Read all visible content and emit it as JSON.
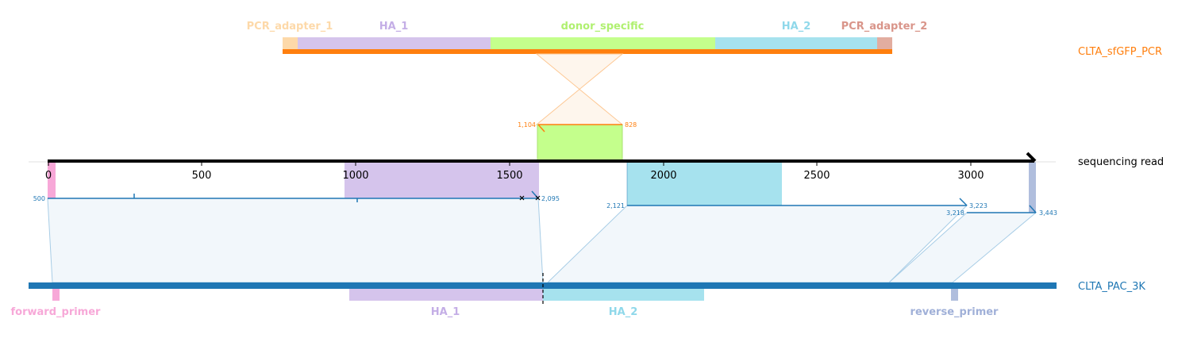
{
  "colors": {
    "pcr_track": "#ff7f0e",
    "read_track": "#000000",
    "ref_track": "#1f77b4",
    "PCR_adapter_1": "#fdd9a9",
    "HA_1": "#d5c4ec",
    "donor_specific": "#c4ff8c",
    "HA_2": "#a6e2ee",
    "PCR_adapter_2": "#e2ada0",
    "forward_primer": "#f7a8d8",
    "reverse_primer": "#b0bedd"
  },
  "tracks": {
    "pcr": {
      "name": "CLTA_sfGFP_PCR"
    },
    "read": {
      "name": "sequencing read"
    },
    "ref": {
      "name": "CLTA_PAC_3K"
    }
  },
  "pcr_features": [
    {
      "label": "PCR_adapter_1",
      "color": "#fdd9a9",
      "label_color": "#fdd9a9"
    },
    {
      "label": "HA_1",
      "color": "#d5c4ec",
      "label_color": "#c4aee6"
    },
    {
      "label": "donor_specific",
      "color": "#c4ff8c",
      "label_color": "#b0f070"
    },
    {
      "label": "HA_2",
      "color": "#a6e2ee",
      "label_color": "#8fd8ea"
    },
    {
      "label": "PCR_adapter_2",
      "color": "#e2ada0",
      "label_color": "#d9958a"
    }
  ],
  "ref_features": [
    {
      "label": "forward_primer",
      "color": "#f7a8d8",
      "label_color": "#f7a8d8"
    },
    {
      "label": "HA_1",
      "color": "#d5c4ec",
      "label_color": "#c4aee6"
    },
    {
      "label": "HA_2",
      "color": "#a6e2ee",
      "label_color": "#8fd8ea"
    },
    {
      "label": "reverse_primer",
      "color": "#b0bedd",
      "label_color": "#a0b0d8"
    }
  ],
  "read_axis": {
    "ticks": [
      0,
      500,
      1000,
      1500,
      2000,
      2500,
      3000
    ],
    "tick_labels": [
      "0",
      "500",
      "1000",
      "1500",
      "2000",
      "2500",
      "3000"
    ]
  },
  "alignments": {
    "pcr_to_read": {
      "start": "1,104",
      "end": "828"
    },
    "ref_to_read": [
      {
        "start": "500",
        "end": "2,095"
      },
      {
        "start": "2,121",
        "end": "3,223"
      },
      {
        "start": "3,218",
        "end": "3,443"
      }
    ]
  }
}
